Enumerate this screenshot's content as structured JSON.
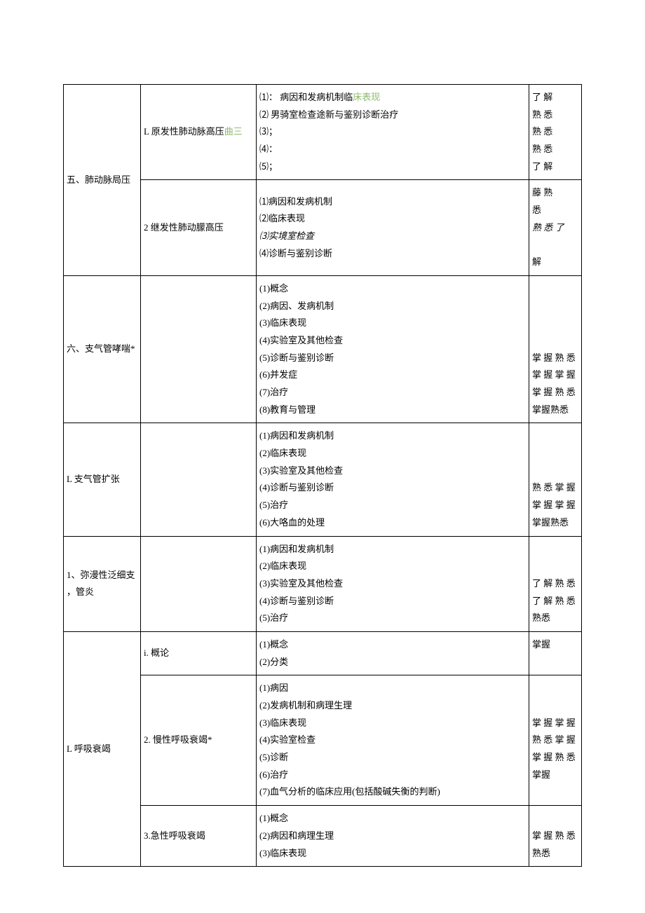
{
  "rows": [
    {
      "col1": "五、肺动脉局压",
      "sub": [
        {
          "col2_prefix": "L 原发性肺动脉高压",
          "col2_green": "曲三",
          "items": [
            "⑴：   病因和发病机制临",
            "⑵   男骑室检查途新与鉴别诊断治疗",
            "⑶；",
            "⑷：",
            "⑸；"
          ],
          "item_inline_green": "床表现",
          "req": [
            "了 解",
            "熟 悉",
            "熟 悉",
            "熟 悉",
            "了 解"
          ]
        },
        {
          "col2": "2 继发性肺动朦高压",
          "items": [
            "⑴病因和发病机制",
            "⑵临床表现",
            "⑶实境室检查",
            "⑷诊断与鉴别诊断"
          ],
          "item_italic_idx": 2,
          "req": [
            "藤 熟",
            "悉 ",
            "",
            "解"
          ],
          "req_italic": "熟 悉 了"
        }
      ]
    },
    {
      "col1": "六、支气管哮喘*",
      "col2": "",
      "items": [
        "(1)概念",
        "(2)病因、发病机制",
        "(3)临床表现",
        "(4)实验室及其他检查",
        "(5)诊断与鉴别诊断",
        "(6)并发症",
        "(7)治疗",
        "(8)教育与管理"
      ],
      "req": [
        "",
        "",
        "",
        "",
        "掌 握 熟 悉",
        "掌 握 掌 握",
        "掌 握 熟 悉",
        "掌握熟悉"
      ]
    },
    {
      "col1": "L 支气管扩张",
      "col2": "",
      "items": [
        "(1)病因和发病机制",
        "(2)临床表现",
        "(3)实验室及其他检查",
        "(4)诊断与鉴别诊断",
        "(5)治疗",
        "(6)大咯血的处理"
      ],
      "req": [
        "",
        "",
        "",
        "熟 悉 掌 握",
        "掌 握 掌 握",
        "掌握熟悉"
      ]
    },
    {
      "col1_lines": [
        "1、弥漫性泛细支",
        "，管炎"
      ],
      "col2": "",
      "items": [
        "(1)病因和发病机制",
        "(2)临床表现",
        "(3)实验室及其他检查",
        "(4)诊断与鉴别诊断",
        "(5)治疗"
      ],
      "req": [
        "",
        "",
        "了 解 熟 悉",
        "了 解 熟 悉",
        "熟悉"
      ]
    },
    {
      "col1": "L 呼吸衰竭",
      "sub": [
        {
          "col2": "i. 概论",
          "items": [
            "(1)概念",
            "(2)分类"
          ],
          "req": [
            "掌握",
            ""
          ]
        },
        {
          "col2": "2. 慢性呼吸衰竭*",
          "items": [
            "(1)病因",
            "(2)发病机制和病理生理",
            "(3)临床表现",
            "(4)实验室检查",
            "(5)诊断",
            "(6)治疗",
            "(7)血气分析的临床应用(包括酸碱失衡的判断)"
          ],
          "req": [
            "",
            "",
            "掌 握 掌 握",
            "熟 悉 掌 握",
            "掌 握 熟 悉",
            "掌握",
            ""
          ]
        },
        {
          "col2": "3.急性呼吸衰竭",
          "items": [
            "(1)概念",
            "(2)病因和病理生理",
            "(3)临床表现"
          ],
          "req": [
            "",
            "掌 握 熟 悉",
            "熟悉"
          ]
        }
      ]
    }
  ]
}
